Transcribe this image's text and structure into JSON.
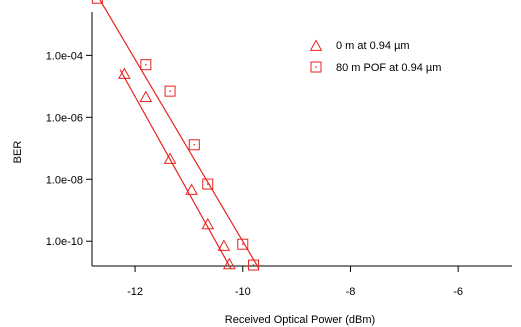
{
  "chart_data": {
    "type": "scatter",
    "title": "",
    "xlabel": "Received  Optical Power (dBm)",
    "ylabel": "BER",
    "xlim": [
      -12.8,
      -5.0
    ],
    "ylim_log10": [
      -10.8,
      -2.6
    ],
    "y_scale": "log",
    "x_ticks": [
      -12,
      -10,
      -8,
      -6
    ],
    "x_tick_labels": [
      "-12",
      "-10",
      "-8",
      "-6"
    ],
    "y_ticks": [
      0.0001,
      1e-06,
      1e-08,
      1e-10
    ],
    "y_tick_labels": [
      "1.0e-04",
      "1.0e-06",
      "1.0e-08",
      "1.0e-10"
    ],
    "grid": false,
    "legend_position": "top-right",
    "color": "#e8231f",
    "series": [
      {
        "name": "0 m at 0.94 µm",
        "marker": "triangle",
        "points": [
          {
            "x": -12.2,
            "y": 2.5e-05
          },
          {
            "x": -11.8,
            "y": 4.5e-06
          },
          {
            "x": -11.35,
            "y": 4.5e-08
          },
          {
            "x": -10.95,
            "y": 4.5e-09
          },
          {
            "x": -10.65,
            "y": 3.5e-10
          },
          {
            "x": -10.35,
            "y": 7e-11
          },
          {
            "x": -10.25,
            "y": 1.8e-11
          }
        ],
        "fit_line": [
          {
            "x": -12.28,
            "y": 3.5e-05
          },
          {
            "x": -10.22,
            "y": 1.3e-11
          }
        ]
      },
      {
        "name": "80 m POF at 0.94 µm",
        "marker": "square",
        "points": [
          {
            "x": -12.7,
            "y": 0.007
          },
          {
            "x": -11.8,
            "y": 5e-05
          },
          {
            "x": -11.35,
            "y": 7e-06
          },
          {
            "x": -10.9,
            "y": 1.3e-07
          },
          {
            "x": -10.65,
            "y": 7e-09
          },
          {
            "x": -10.0,
            "y": 8e-11
          },
          {
            "x": -9.8,
            "y": 1.7e-11
          }
        ],
        "fit_line": [
          {
            "x": -12.7,
            "y": 0.0085
          },
          {
            "x": -9.7,
            "y": 1.3e-11
          }
        ]
      }
    ]
  }
}
